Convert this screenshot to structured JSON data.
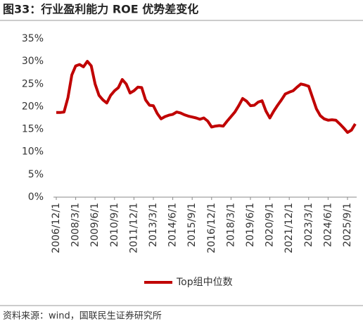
{
  "chart_data": {
    "type": "line",
    "title": "图33：行业盈利能力 ROE 优势差变化",
    "source": "资料来源：wind，国联民生证券研究所",
    "categories": [
      "2006/12/1",
      null,
      null,
      null,
      null,
      "2008/3/1",
      null,
      null,
      null,
      null,
      "2009/6/1",
      null,
      null,
      null,
      null,
      "2010/9/1",
      null,
      null,
      null,
      null,
      "2011/12/1",
      null,
      null,
      null,
      null,
      "2013/3/1",
      null,
      null,
      null,
      null,
      "2014/6/1",
      null,
      null,
      null,
      null,
      "2015/9/1",
      null,
      null,
      null,
      null,
      "2016/12/1",
      null,
      null,
      null,
      null,
      "2018/3/1",
      null,
      null,
      null,
      null,
      "2019/6/1",
      null,
      null,
      null,
      null,
      "2020/9/1",
      null,
      null,
      null,
      null,
      "2021/12/1",
      null,
      null,
      null,
      null,
      "2023/3/1",
      null,
      null,
      null,
      null,
      "2024/6/1",
      null,
      null,
      null,
      null,
      "2025/9/1",
      null,
      null
    ],
    "series": [
      {
        "name": "Top组中位数",
        "color": "#c00000",
        "values": [
          18.7,
          18.7,
          18.8,
          22,
          27,
          29,
          29.3,
          28.8,
          30,
          29,
          25,
          22.5,
          21.5,
          20.8,
          22.5,
          23.5,
          24.2,
          26,
          25,
          23,
          23.5,
          24.3,
          24.2,
          21.5,
          20.3,
          20.2,
          18.5,
          17.3,
          17.8,
          18.1,
          18.3,
          18.8,
          18.6,
          18.2,
          17.9,
          17.7,
          17.5,
          17.2,
          17.5,
          16.8,
          15.5,
          15.7,
          15.8,
          15.7,
          16.8,
          17.8,
          18.8,
          20.2,
          21.8,
          21.2,
          20.2,
          20.3,
          21,
          21.3,
          19,
          17.5,
          19,
          20.3,
          21.5,
          22.8,
          23.2,
          23.5,
          24.3,
          25,
          24.8,
          24.5,
          22,
          19.5,
          18,
          17.3,
          17,
          17.1,
          17,
          16.2,
          15.3,
          14.3,
          14.8,
          16.2
        ]
      }
    ],
    "ylim": [
      0,
      35
    ],
    "yticks": [
      {
        "value": 0,
        "label": "0%"
      },
      {
        "value": 5,
        "label": "5%"
      },
      {
        "value": 10,
        "label": "10%"
      },
      {
        "value": 15,
        "label": "15%"
      },
      {
        "value": 20,
        "label": "20%"
      },
      {
        "value": 25,
        "label": "25%"
      },
      {
        "value": 30,
        "label": "30%"
      },
      {
        "value": 35,
        "label": "35%"
      }
    ],
    "grid": false,
    "legend": "bottom"
  }
}
